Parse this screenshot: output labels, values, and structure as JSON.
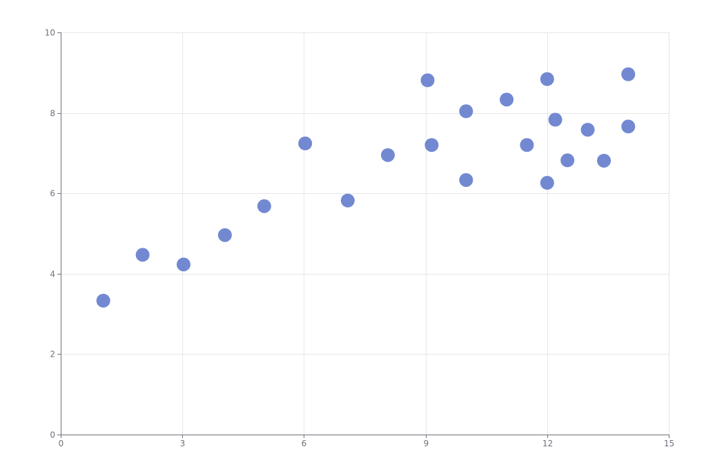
{
  "chart_data": {
    "type": "scatter",
    "title": "",
    "xlabel": "",
    "ylabel": "",
    "xlim": [
      0,
      15
    ],
    "ylim": [
      0,
      10
    ],
    "x_ticks": [
      0,
      3,
      6,
      9,
      12,
      15
    ],
    "y_ticks": [
      0,
      2,
      4,
      6,
      8,
      10
    ],
    "grid": true,
    "point_color": "#7289d2",
    "series": [
      {
        "points": [
          {
            "x": 1.05,
            "y": 3.33
          },
          {
            "x": 2.02,
            "y": 4.47
          },
          {
            "x": 3.03,
            "y": 4.23
          },
          {
            "x": 4.05,
            "y": 4.96
          },
          {
            "x": 5.02,
            "y": 5.68
          },
          {
            "x": 6.03,
            "y": 7.24
          },
          {
            "x": 7.08,
            "y": 5.82
          },
          {
            "x": 8.07,
            "y": 6.95
          },
          {
            "x": 9.05,
            "y": 8.81
          },
          {
            "x": 9.15,
            "y": 7.2
          },
          {
            "x": 10.0,
            "y": 8.04
          },
          {
            "x": 10.0,
            "y": 6.33
          },
          {
            "x": 11.0,
            "y": 8.33
          },
          {
            "x": 11.5,
            "y": 7.2
          },
          {
            "x": 12.0,
            "y": 8.84
          },
          {
            "x": 12.0,
            "y": 6.26
          },
          {
            "x": 12.2,
            "y": 7.83
          },
          {
            "x": 12.5,
            "y": 6.82
          },
          {
            "x": 13.0,
            "y": 7.58
          },
          {
            "x": 13.4,
            "y": 6.81
          },
          {
            "x": 14.0,
            "y": 8.96
          },
          {
            "x": 14.0,
            "y": 7.66
          }
        ]
      }
    ]
  }
}
